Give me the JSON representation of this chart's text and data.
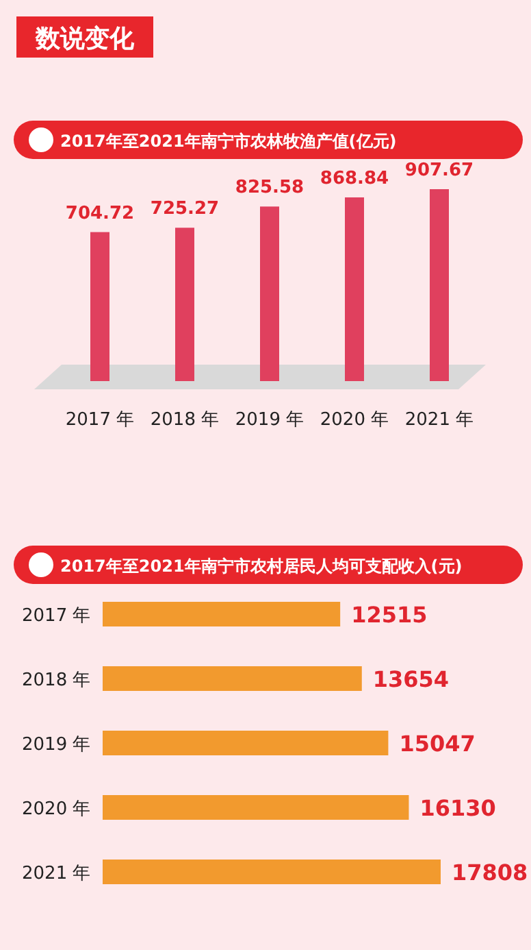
{
  "chart_data": [
    {
      "type": "bar",
      "title": "2017年至2021年南宁市农林牧渔产值(亿元)",
      "annotations": [
        "数说变化"
      ],
      "categories": [
        "2017 年",
        "2018 年",
        "2019 年",
        "2020 年",
        "2021 年"
      ],
      "values": [
        704.72,
        725.27,
        825.58,
        868.84,
        907.67
      ],
      "color": "#e0405e",
      "data_labels": true
    },
    {
      "type": "bar",
      "orientation": "horizontal",
      "title": "2017年至2021年南宁市农村居民人均可支配收入(元)",
      "categories": [
        "2017 年",
        "2018 年",
        "2019 年",
        "2020 年",
        "2021 年"
      ],
      "values": [
        12515,
        13654,
        15047,
        16130,
        17808
      ],
      "color": "#f29a2e",
      "data_labels": true
    }
  ]
}
